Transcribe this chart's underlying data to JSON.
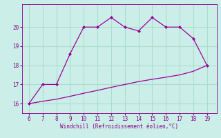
{
  "x_upper": [
    6,
    7,
    8,
    9,
    10,
    11,
    12,
    13,
    14,
    15,
    16,
    17,
    18,
    19
  ],
  "y_upper": [
    16.0,
    17.0,
    17.0,
    18.6,
    20.0,
    20.0,
    20.5,
    20.0,
    19.8,
    20.5,
    20.0,
    20.0,
    19.4,
    18.0
  ],
  "x_lower": [
    6,
    7,
    8,
    9,
    10,
    11,
    12,
    13,
    14,
    15,
    16,
    17,
    18,
    19
  ],
  "y_lower": [
    16.0,
    16.12,
    16.23,
    16.38,
    16.54,
    16.69,
    16.85,
    17.0,
    17.15,
    17.27,
    17.38,
    17.5,
    17.69,
    18.0
  ],
  "line_color": "#990099",
  "marker_color": "#990099",
  "bg_color": "#cceee8",
  "grid_color": "#aaddcc",
  "xlabel": "Windchill (Refroidissement éolien,°C)",
  "xlabel_color": "#880088",
  "tick_color": "#880088",
  "xlim": [
    5.5,
    19.7
  ],
  "ylim": [
    15.5,
    21.2
  ],
  "xticks": [
    6,
    7,
    8,
    9,
    10,
    11,
    12,
    13,
    14,
    15,
    16,
    17,
    18,
    19
  ],
  "yticks": [
    16,
    17,
    18,
    19,
    20
  ]
}
